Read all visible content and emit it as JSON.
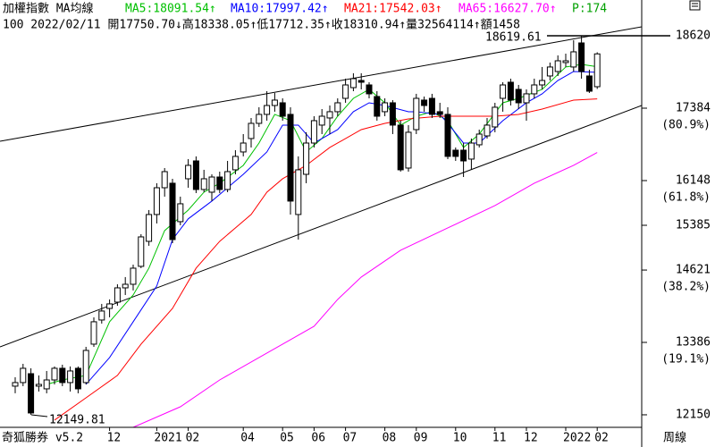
{
  "header": {
    "title": "加權指數 MA均線",
    "p": "P:174",
    "quote": "100 2022/02/11 開17750.70↓高18338.05↑低17712.35↑收18310.94↑量32564114↑額1458"
  },
  "footer": {
    "brand": "奇狐勝券 v5.2",
    "period": "周線"
  },
  "chart_data": {
    "type": "candlestick",
    "categories": [
      null,
      null,
      null,
      null,
      null,
      null,
      null,
      null,
      null,
      null,
      null,
      null,
      "12",
      null,
      null,
      null,
      null,
      null,
      "2021",
      null,
      null,
      null,
      "02",
      null,
      null,
      null,
      null,
      null,
      null,
      "04",
      null,
      null,
      null,
      null,
      "05",
      null,
      null,
      null,
      "06",
      null,
      null,
      null,
      "07",
      null,
      null,
      null,
      null,
      "08",
      null,
      null,
      null,
      "09",
      null,
      null,
      null,
      null,
      "10",
      null,
      null,
      null,
      null,
      "11",
      null,
      null,
      null,
      "12",
      null,
      null,
      null,
      null,
      "2022",
      null,
      null,
      null,
      "02"
    ],
    "open": [
      12639,
      12700,
      12852,
      12639,
      12593,
      12745,
      12944,
      12700,
      12944,
      12700,
      13356,
      13768,
      13966,
      14073,
      14317,
      14378,
      14684,
      15111,
      15569,
      16026,
      16103,
      15447,
      16179,
      16484,
      15996,
      15950,
      16209,
      15996,
      16332,
      16637,
      16866,
      17125,
      17278,
      17430,
      17476,
      17278,
      15569,
      16255,
      16789,
      17095,
      17217,
      17324,
      17552,
      17735,
      17857,
      17781,
      17583,
      17324,
      17476,
      17095,
      16362,
      17018,
      17522,
      17552,
      17324,
      17278,
      16667,
      16667,
      16515,
      16759,
      16911,
      17064,
      17552,
      17827,
      17705,
      17476,
      17629,
      17781,
      17934,
      18010,
      18163,
      18087,
      18498,
      17934,
      17750.7
    ],
    "high": [
      12791,
      13020,
      12944,
      12822,
      12898,
      12975,
      13005,
      12975,
      12975,
      13310,
      13814,
      14043,
      14119,
      14378,
      14501,
      14714,
      15233,
      15645,
      16103,
      16362,
      16179,
      15874,
      16515,
      16561,
      16332,
      16255,
      16301,
      16484,
      16667,
      16942,
      17217,
      17400,
      17674,
      17644,
      17552,
      17400,
      16561,
      16973,
      17247,
      17369,
      17430,
      17552,
      17888,
      17980,
      17980,
      17827,
      17674,
      17552,
      17522,
      17171,
      17095,
      17629,
      17583,
      17629,
      17476,
      17400,
      16713,
      16789,
      16866,
      17018,
      17217,
      17476,
      17827,
      17888,
      17781,
      17705,
      17888,
      18087,
      18163,
      18285,
      18315,
      18544,
      18620,
      18041,
      18338.05
    ],
    "low": [
      12517,
      12639,
      12150,
      12547,
      12517,
      12669,
      12639,
      12547,
      12517,
      12669,
      13310,
      13707,
      13814,
      14012,
      14195,
      14272,
      14653,
      15035,
      15416,
      15874,
      15080,
      15386,
      16026,
      15935,
      15950,
      15798,
      15935,
      15950,
      16255,
      16561,
      16713,
      17064,
      17171,
      17324,
      17171,
      15569,
      15141,
      16103,
      16713,
      16942,
      16942,
      17247,
      17476,
      17674,
      17705,
      17552,
      17171,
      17247,
      16942,
      16301,
      16301,
      16942,
      17324,
      17217,
      17217,
      16515,
      16484,
      16209,
      16332,
      16713,
      16866,
      16973,
      17324,
      17430,
      17369,
      17171,
      17552,
      17705,
      17857,
      17934,
      18087,
      18010,
      17888,
      17644,
      17712.35
    ],
    "close": [
      12700,
      12944,
      12181,
      12669,
      12745,
      12944,
      12700,
      12898,
      12593,
      13249,
      13738,
      13921,
      14043,
      14317,
      14378,
      14653,
      15187,
      15569,
      16026,
      16301,
      15141,
      15752,
      16408,
      15996,
      16179,
      16209,
      15996,
      16301,
      16561,
      16789,
      17125,
      17278,
      17430,
      17522,
      17247,
      15798,
      16332,
      16789,
      17171,
      17247,
      17324,
      17476,
      17781,
      17888,
      17827,
      17629,
      17247,
      17476,
      17095,
      16332,
      16973,
      17552,
      17430,
      17278,
      17278,
      16561,
      16561,
      16484,
      16789,
      16942,
      17095,
      17400,
      17781,
      17522,
      17476,
      17629,
      17781,
      17857,
      18087,
      18193,
      18193,
      18346,
      18010,
      17674,
      18310.94
    ],
    "up_color": "#ffffff",
    "down_color": "#000000",
    "series": [
      {
        "name": "MA5:18091.54↑",
        "color": "#00c000",
        "x": [
          4,
          6,
          9,
          12,
          15,
          17,
          19,
          22,
          24,
          26,
          29,
          31,
          33,
          35,
          37,
          39,
          41,
          43,
          45,
          47,
          49,
          51,
          53,
          55,
          57,
          59,
          62,
          64,
          67,
          70,
          72,
          74
        ],
        "values": [
          12669,
          12745,
          12822,
          13738,
          14195,
          14653,
          15294,
          15645,
          15950,
          16103,
          16408,
          16789,
          17278,
          17171,
          16637,
          16866,
          17247,
          17552,
          17705,
          17476,
          17095,
          17247,
          17324,
          17171,
          16713,
          16942,
          17476,
          17552,
          17705,
          18087,
          18132,
          18091.54
        ]
      },
      {
        "name": "MA10:17997.42↑",
        "color": "#0000ff",
        "x": [
          9,
          12,
          15,
          18,
          20,
          22,
          25,
          27,
          29,
          32,
          34,
          36,
          38,
          41,
          43,
          45,
          47,
          50,
          51,
          54,
          55,
          57,
          59,
          62,
          65,
          67,
          69,
          71,
          74
        ],
        "values": [
          12669,
          13127,
          13738,
          14348,
          15141,
          15495,
          15798,
          16026,
          16255,
          16637,
          17095,
          17095,
          16789,
          17018,
          17324,
          17476,
          17430,
          17324,
          17324,
          17278,
          17125,
          16789,
          16789,
          17171,
          17476,
          17629,
          17857,
          18010,
          17997.42
        ]
      },
      {
        "name": "MA21:17542.03↑",
        "color": "#ff0000",
        "x": [
          5,
          9,
          13,
          16,
          20,
          23,
          26,
          30,
          32,
          34,
          37,
          40,
          44,
          47,
          50,
          54,
          57,
          61,
          64,
          67,
          71,
          74
        ],
        "values": [
          12059,
          12440,
          12822,
          13356,
          13966,
          14653,
          15111,
          15569,
          15950,
          16179,
          16408,
          16713,
          17018,
          17125,
          17201,
          17247,
          17247,
          17247,
          17278,
          17369,
          17522,
          17542.03
        ]
      },
      {
        "name": "MA65:16627.70↑",
        "color": "#ff00ff",
        "x": [
          15,
          21,
          26,
          32,
          38,
          41,
          44,
          49,
          55,
          61,
          66,
          71,
          74
        ],
        "values": [
          11936,
          12287,
          12745,
          13203,
          13661,
          14119,
          14501,
          14958,
          15340,
          15721,
          16103,
          16408,
          16627.7
        ]
      }
    ],
    "ylim": [
      11936,
      18956
    ],
    "yticks": [
      18620,
      17384,
      16148,
      15385,
      14621,
      13386,
      12150
    ],
    "ratio_labels": [
      {
        "value": 17384,
        "label": "(80.9%)"
      },
      {
        "value": 16148,
        "label": "(61.8%)"
      },
      {
        "value": 14621,
        "label": "(38.2%)"
      },
      {
        "value": 13386,
        "label": "(19.1%)"
      }
    ],
    "high_label": 18619.61,
    "low_label": 12149.81
  }
}
